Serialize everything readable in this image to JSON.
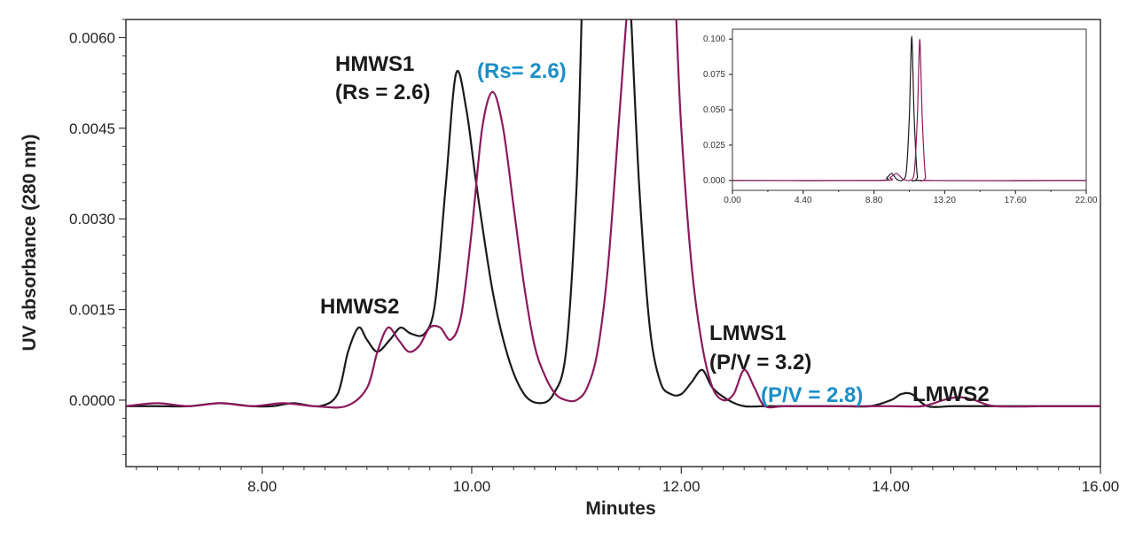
{
  "chart_data": [
    {
      "type": "line",
      "xlabel": "Minutes",
      "ylabel": "UV absorbance (280 nm)",
      "xlim": [
        6.7,
        16.0
      ],
      "ylim": [
        -0.0011,
        0.0063
      ],
      "x_ticks": [
        8.0,
        10.0,
        12.0,
        14.0,
        16.0
      ],
      "x_tick_labels": [
        "8.00",
        "10.00",
        "12.00",
        "14.00",
        "16.00"
      ],
      "y_ticks": [
        0.0,
        0.0015,
        0.003,
        0.0045,
        0.006
      ],
      "y_tick_labels": [
        "0.0000",
        "0.0015",
        "0.0030",
        "0.0045",
        "0.0060"
      ],
      "series": [
        {
          "name": "black trace",
          "color": "#1a1a1a",
          "x": [
            6.7,
            7.0,
            7.3,
            7.6,
            7.9,
            8.1,
            8.3,
            8.55,
            8.72,
            8.82,
            8.92,
            9.0,
            9.1,
            9.22,
            9.32,
            9.42,
            9.55,
            9.65,
            9.75,
            9.85,
            9.95,
            10.05,
            10.2,
            10.35,
            10.5,
            10.65,
            10.78,
            10.9,
            11.0,
            11.05
          ],
          "values": [
            -0.0001,
            -0.0001,
            -0.0001,
            -5e-05,
            -0.0001,
            -0.0001,
            -5e-05,
            -0.0001,
            0.0001,
            0.0008,
            0.0012,
            0.001,
            0.0008,
            0.001,
            0.0012,
            0.0011,
            0.0011,
            0.0016,
            0.0035,
            0.0054,
            0.0048,
            0.0035,
            0.0018,
            0.0007,
            0.0001,
            -5e-05,
            0.0001,
            0.0008,
            0.0035,
            0.0064
          ]
        },
        {
          "name": "black trace (after main peak)",
          "color": "#1a1a1a",
          "x": [
            11.52,
            11.6,
            11.7,
            11.8,
            11.9,
            12.0,
            12.1,
            12.2,
            12.3,
            12.45,
            12.6,
            12.8,
            13.0,
            13.5,
            13.8,
            14.0,
            14.1,
            14.2,
            14.35,
            14.6,
            15.0,
            15.5,
            16.0
          ],
          "values": [
            0.0064,
            0.0035,
            0.0012,
            0.0003,
            0.0001,
            0.0001,
            0.0003,
            0.0005,
            0.0002,
            0.0,
            -0.0001,
            -0.0001,
            -0.0001,
            -0.0001,
            -0.0001,
            0.0,
            0.0001,
            0.0001,
            -0.0001,
            -0.0001,
            -0.0001,
            -0.0001,
            -0.0001
          ]
        },
        {
          "name": "magenta trace",
          "color": "#8b1a5c",
          "x": [
            6.7,
            7.0,
            7.3,
            7.6,
            7.9,
            8.2,
            8.5,
            8.8,
            9.0,
            9.1,
            9.2,
            9.3,
            9.4,
            9.5,
            9.6,
            9.7,
            9.8,
            9.9,
            10.0,
            10.1,
            10.2,
            10.3,
            10.4,
            10.5,
            10.6,
            10.7,
            10.8,
            10.9,
            11.0,
            11.1,
            11.2,
            11.3,
            11.4,
            11.48
          ],
          "values": [
            -0.0001,
            -5e-05,
            -0.0001,
            -5e-05,
            -0.0001,
            -5e-05,
            -0.0001,
            -0.0001,
            0.0002,
            0.0008,
            0.0012,
            0.001,
            0.0008,
            0.0009,
            0.0012,
            0.0012,
            0.001,
            0.0014,
            0.0028,
            0.0045,
            0.0051,
            0.0045,
            0.0032,
            0.0019,
            0.0009,
            0.0004,
            0.0001,
            0.0,
            0.0,
            0.0002,
            0.0008,
            0.0022,
            0.0045,
            0.0064
          ]
        },
        {
          "name": "magenta trace (after main peak)",
          "color": "#8b1a5c",
          "x": [
            11.95,
            12.0,
            12.1,
            12.2,
            12.3,
            12.4,
            12.5,
            12.6,
            12.7,
            12.8,
            13.0,
            13.5,
            14.0,
            14.3,
            14.5,
            14.65,
            14.8,
            15.0,
            15.5,
            16.0
          ],
          "values": [
            0.0064,
            0.0045,
            0.0022,
            0.0009,
            0.0002,
            0.0,
            0.0001,
            0.0005,
            0.0002,
            -0.0001,
            -0.0001,
            -0.0001,
            -0.0001,
            -0.0001,
            0.0,
            5e-05,
            0.0,
            -0.0001,
            -0.0001,
            -0.0001
          ]
        }
      ],
      "annotations": [
        {
          "text": "HMWS1",
          "color": "#1a1a1a"
        },
        {
          "text": "(Rs = 2.6)",
          "color": "#1a1a1a"
        },
        {
          "text": "(Rs= 2.6)",
          "color": "#1a8fc8"
        },
        {
          "text": "HMWS2",
          "color": "#1a1a1a"
        },
        {
          "text": "LMWS1",
          "color": "#1a1a1a"
        },
        {
          "text": "(P/V = 3.2)",
          "color": "#1a1a1a"
        },
        {
          "text": "(P/V = 2.8)",
          "color": "#1a8fc8"
        },
        {
          "text": "LMWS2",
          "color": "#1a1a1a"
        }
      ]
    },
    {
      "type": "line",
      "title": "inset",
      "xlim": [
        0.0,
        22.0
      ],
      "ylim": [
        -0.007,
        0.107
      ],
      "x_ticks": [
        0.0,
        4.4,
        8.8,
        13.2,
        17.6,
        22.0
      ],
      "x_tick_labels": [
        "0.00",
        "4.40",
        "8.80",
        "13.20",
        "17.60",
        "22.00"
      ],
      "y_ticks": [
        0.0,
        0.025,
        0.05,
        0.075,
        0.1
      ],
      "y_tick_labels": [
        "0.000",
        "0.025",
        "0.050",
        "0.075",
        "0.100"
      ],
      "series": [
        {
          "name": "black trace",
          "color": "#1a1a1a",
          "x": [
            0.0,
            9.0,
            9.6,
            9.9,
            10.2,
            10.5,
            10.8,
            11.0,
            11.15,
            11.3,
            11.5,
            11.8,
            22.0
          ],
          "values": [
            0.0,
            0.0,
            0.002,
            0.005,
            0.001,
            0.0,
            0.005,
            0.045,
            0.102,
            0.045,
            0.003,
            0.0,
            0.0
          ]
        },
        {
          "name": "magenta trace",
          "color": "#8b1a5c",
          "x": [
            0.0,
            9.3,
            9.8,
            10.2,
            10.6,
            11.0,
            11.3,
            11.5,
            11.65,
            11.8,
            12.0,
            12.3,
            22.0
          ],
          "values": [
            0.0,
            0.0,
            0.002,
            0.005,
            0.001,
            0.0,
            0.005,
            0.045,
            0.1,
            0.045,
            0.003,
            0.0,
            0.0
          ]
        }
      ]
    }
  ]
}
